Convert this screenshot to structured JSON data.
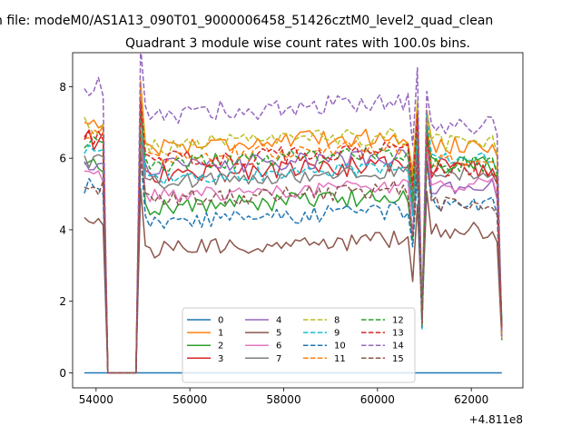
{
  "chart_data": {
    "type": "line",
    "suptitle": "n file: modeM0/AS1A13_090T01_9000006458_51426cztM0_level2_quad_clean",
    "title": "Quadrant 3 module wise count rates with 100.0s bins.",
    "xlabel": "",
    "ylabel": "",
    "x_offset_label": "+4.811e8",
    "x_ticks": [
      54000,
      56000,
      58000,
      60000,
      62000
    ],
    "x_tick_labels": [
      "54000",
      "56000",
      "58000",
      "60000",
      "62000"
    ],
    "y_ticks": [
      0,
      2,
      4,
      6,
      8
    ],
    "y_tick_labels": [
      "0",
      "2",
      "4",
      "6",
      "8"
    ],
    "xlim": [
      53500,
      63100
    ],
    "ylim": [
      -0.42,
      8.95
    ],
    "grid": false,
    "legend_position": "lower center",
    "legend_columns": 4,
    "x_start": 53750,
    "x_step": 100,
    "x_end": 62650,
    "segments": [
      {
        "from": 53750,
        "to": 54150,
        "status": "active"
      },
      {
        "from": 54250,
        "to": 54850,
        "status": "zero"
      },
      {
        "from": 54950,
        "to": 60650,
        "status": "active"
      },
      {
        "from": 60750,
        "to": 60950,
        "status": "active_dip"
      },
      {
        "from": 61050,
        "to": 62550,
        "status": "active"
      },
      {
        "from": 62650,
        "to": 62650,
        "status": "end"
      }
    ],
    "series": [
      {
        "name": "0",
        "color": "#1f77b4",
        "dash": "solid",
        "level": 0.0,
        "start": 0.0,
        "end": 0.0,
        "spread": 0.0
      },
      {
        "name": "1",
        "color": "#ff7f0e",
        "dash": "solid",
        "level": 6.5,
        "start": 7.0,
        "end": 6.2,
        "spread": 0.25
      },
      {
        "name": "2",
        "color": "#2ca02c",
        "dash": "solid",
        "level": 4.8,
        "start": 5.8,
        "end": 5.8,
        "spread": 0.25
      },
      {
        "name": "3",
        "color": "#d62728",
        "dash": "solid",
        "level": 5.7,
        "start": 6.5,
        "end": 5.5,
        "spread": 0.3
      },
      {
        "name": "4",
        "color": "#9467bd",
        "dash": "solid",
        "level": 5.9,
        "start": 5.8,
        "end": 5.0,
        "spread": 0.25
      },
      {
        "name": "5",
        "color": "#8c564b",
        "dash": "solid",
        "level": 3.6,
        "start": 4.2,
        "end": 3.9,
        "spread": 0.25
      },
      {
        "name": "6",
        "color": "#e377c2",
        "dash": "solid",
        "level": 5.1,
        "start": 5.5,
        "end": 5.2,
        "spread": 0.2
      },
      {
        "name": "7",
        "color": "#7f7f7f",
        "dash": "solid",
        "level": 5.5,
        "start": 5.9,
        "end": 5.5,
        "spread": 0.2
      },
      {
        "name": "8",
        "color": "#bcbd22",
        "dash": "dashed",
        "level": 6.5,
        "start": 6.9,
        "end": 6.3,
        "spread": 0.25
      },
      {
        "name": "9",
        "color": "#17becf",
        "dash": "dashed",
        "level": 5.6,
        "start": 6.3,
        "end": 5.9,
        "spread": 0.2
      },
      {
        "name": "10",
        "color": "#1f77b4",
        "dash": "dashed",
        "level": 4.4,
        "start": 5.2,
        "end": 4.6,
        "spread": 0.25
      },
      {
        "name": "11",
        "color": "#ff7f0e",
        "dash": "dashed",
        "level": 6.2,
        "start": 6.7,
        "end": 5.8,
        "spread": 0.25
      },
      {
        "name": "12",
        "color": "#2ca02c",
        "dash": "dashed",
        "level": 6.0,
        "start": 6.4,
        "end": 5.7,
        "spread": 0.25
      },
      {
        "name": "13",
        "color": "#d62728",
        "dash": "dashed",
        "level": 6.1,
        "start": 6.6,
        "end": 5.4,
        "spread": 0.25
      },
      {
        "name": "14",
        "color": "#9467bd",
        "dash": "dashed",
        "level": 7.4,
        "start": 8.0,
        "end": 6.7,
        "spread": 0.3
      },
      {
        "name": "15",
        "color": "#8c564b",
        "dash": "dashed",
        "level": 5.0,
        "start": 5.2,
        "end": 4.6,
        "spread": 0.25
      }
    ]
  }
}
